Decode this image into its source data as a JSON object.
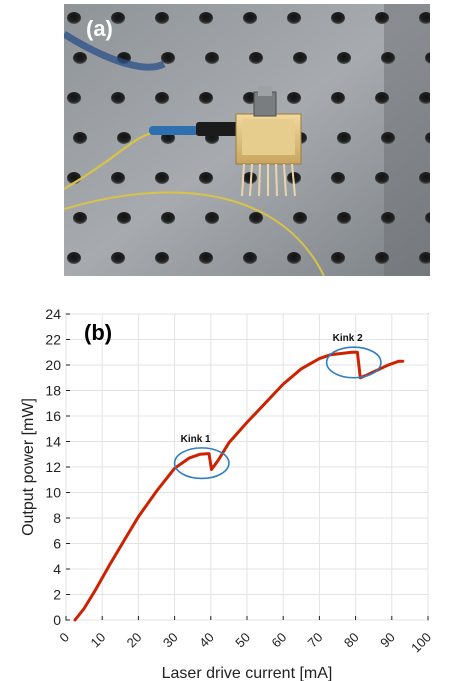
{
  "photo": {
    "panel_label": "(a)"
  },
  "chart_data": {
    "type": "line",
    "panel_label": "(b)",
    "xlabel": "Laser drive current [mA]",
    "ylabel": "Output power [mW]",
    "xlim": [
      0,
      100
    ],
    "ylim": [
      0,
      24
    ],
    "xticks": [
      0,
      10,
      20,
      30,
      40,
      50,
      60,
      70,
      80,
      90,
      100
    ],
    "yticks": [
      0,
      2,
      4,
      6,
      8,
      10,
      12,
      14,
      16,
      18,
      20,
      22,
      24
    ],
    "grid": true,
    "series": [
      {
        "color": "#cc2200",
        "x": [
          2.5,
          5,
          8,
          12,
          16,
          20,
          25,
          30,
          34,
          37,
          39.5,
          40.2,
          42,
          45,
          50,
          55,
          60,
          65,
          70,
          73,
          76,
          79,
          80.5,
          81.3,
          83,
          86,
          89,
          92,
          93
        ],
        "y": [
          0.0,
          0.9,
          2.3,
          4.3,
          6.2,
          8.1,
          10.1,
          11.9,
          12.7,
          13.0,
          13.05,
          11.8,
          12.5,
          13.9,
          15.5,
          17.0,
          18.5,
          19.7,
          20.5,
          20.8,
          20.9,
          21.0,
          21.0,
          19.0,
          19.2,
          19.6,
          20.0,
          20.3,
          20.3
        ]
      }
    ],
    "annotations": [
      {
        "text": "Kink 1",
        "x": 37.5,
        "y": 12.3,
        "rx": 7.5,
        "ry": 1.2
      },
      {
        "text": "Kink 2",
        "x": 79.5,
        "y": 20.2,
        "rx": 7.5,
        "ry": 1.2
      }
    ]
  }
}
